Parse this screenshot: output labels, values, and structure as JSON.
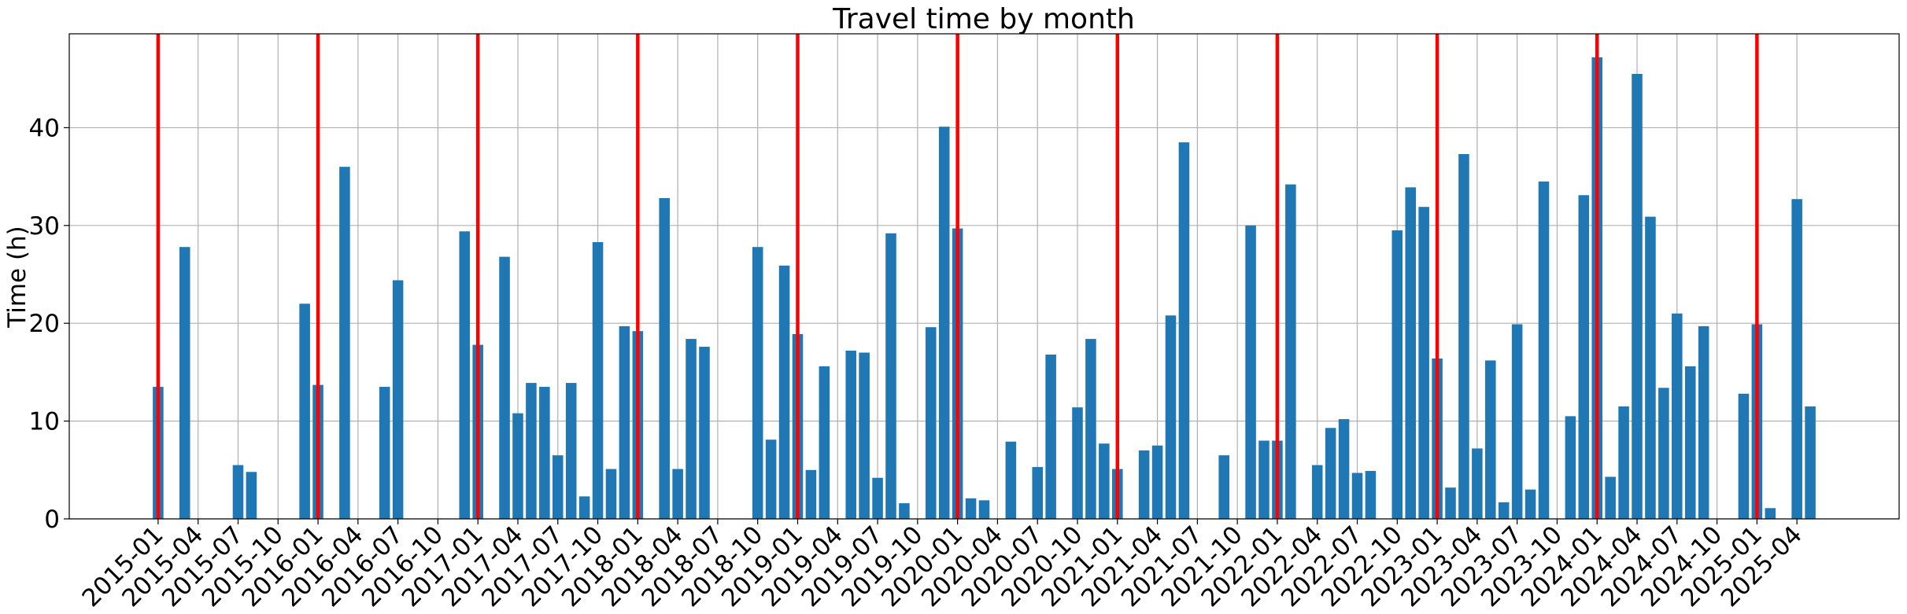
{
  "chart_data": {
    "type": "bar",
    "title": "Travel time by month",
    "ylabel": "Time (h)",
    "categories": [
      "2015-01",
      null,
      null,
      "2015-04",
      null,
      null,
      "2015-07",
      null,
      null,
      "2015-10",
      null,
      null,
      "2016-01",
      null,
      null,
      "2016-04",
      null,
      null,
      "2016-07",
      null,
      null,
      "2016-10",
      null,
      null,
      "2017-01",
      null,
      null,
      "2017-04",
      null,
      null,
      "2017-07",
      null,
      null,
      "2017-10",
      null,
      null,
      "2018-01",
      null,
      null,
      "2018-04",
      null,
      null,
      "2018-07",
      null,
      null,
      "2018-10",
      null,
      null,
      "2019-01",
      null,
      null,
      "2019-04",
      null,
      null,
      "2019-07",
      null,
      null,
      "2019-10",
      null,
      null,
      "2020-01",
      null,
      null,
      "2020-04",
      null,
      null,
      "2020-07",
      null,
      null,
      "2020-10",
      null,
      null,
      "2021-01",
      null,
      null,
      "2021-04",
      null,
      null,
      "2021-07",
      null,
      null,
      "2021-10",
      null,
      null,
      "2022-01",
      null,
      null,
      "2022-04",
      null,
      null,
      "2022-07",
      null,
      null,
      "2022-10",
      null,
      null,
      "2023-01",
      null,
      null,
      "2023-04",
      null,
      null,
      "2023-07",
      null,
      null,
      "2023-10",
      null,
      null,
      "2024-01",
      null,
      null,
      "2024-04",
      null,
      null,
      "2024-07",
      null,
      null,
      "2024-10",
      null,
      null,
      "2025-01",
      null,
      null,
      "2025-04",
      null
    ],
    "values": [
      13.5,
      0,
      27.8,
      0,
      0,
      0,
      5.5,
      4.8,
      0,
      0,
      0,
      22.0,
      13.7,
      0,
      36.0,
      0,
      0,
      13.5,
      24.4,
      0,
      0,
      0,
      0,
      29.4,
      17.8,
      0,
      26.8,
      10.8,
      13.9,
      13.5,
      6.5,
      13.9,
      2.3,
      28.3,
      5.1,
      19.7,
      19.2,
      0,
      32.8,
      5.1,
      18.4,
      17.6,
      0,
      0,
      0,
      27.8,
      8.1,
      25.9,
      18.9,
      5.0,
      15.6,
      0,
      17.2,
      17.0,
      4.2,
      29.2,
      1.6,
      0,
      19.6,
      40.1,
      29.7,
      2.1,
      1.9,
      0,
      7.9,
      0,
      5.3,
      16.8,
      0,
      11.4,
      18.4,
      7.7,
      5.1,
      0,
      7.0,
      7.5,
      20.8,
      38.5,
      0,
      0,
      6.5,
      0,
      30.0,
      8.0,
      8.0,
      34.2,
      0,
      5.5,
      9.3,
      10.2,
      4.7,
      4.9,
      0,
      29.5,
      33.9,
      31.9,
      16.4,
      3.2,
      37.3,
      7.2,
      16.2,
      1.7,
      19.9,
      3.0,
      34.5,
      0,
      10.5,
      33.1,
      47.2,
      4.3,
      11.5,
      45.5,
      30.9,
      13.4,
      21.0,
      15.6,
      19.7,
      0,
      0,
      12.8,
      19.9,
      1.1,
      0,
      32.7,
      11.5
    ],
    "color": "#1f77b4",
    "vline_color": "#ff0000",
    "ylim": [
      0,
      49.6
    ],
    "yticks": [
      0,
      10,
      20,
      30,
      40
    ],
    "grid": true
  }
}
